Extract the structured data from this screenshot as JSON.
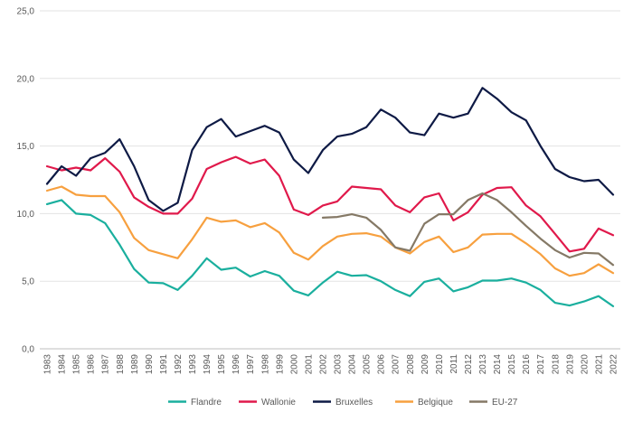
{
  "chart_data": {
    "type": "line",
    "x": [
      "1983",
      "1984",
      "1985",
      "1986",
      "1987",
      "1988",
      "1989",
      "1990",
      "1991",
      "1992",
      "1993",
      "1994",
      "1995",
      "1996",
      "1997",
      "1998",
      "1999",
      "2000",
      "2001",
      "2002",
      "2003",
      "2004",
      "2005",
      "2006",
      "2007",
      "2008",
      "2009",
      "2010",
      "2011",
      "2012",
      "2013",
      "2014",
      "2015",
      "2016",
      "2017",
      "2018",
      "2019",
      "2020",
      "2021",
      "2022"
    ],
    "ylim": [
      0,
      25
    ],
    "yticks": [
      "0,0",
      "5,0",
      "10,0",
      "15,0",
      "20,0",
      "25,0"
    ],
    "grid": true,
    "legend_position": "bottom",
    "series": [
      {
        "name": "Flandre",
        "color": "#1aaf9e",
        "values": [
          10.7,
          11.0,
          10.0,
          9.9,
          9.3,
          7.7,
          5.9,
          4.9,
          4.85,
          4.35,
          5.4,
          6.7,
          5.85,
          6.0,
          5.35,
          5.75,
          5.4,
          4.3,
          3.95,
          4.9,
          5.7,
          5.4,
          5.45,
          5.0,
          4.35,
          3.9,
          4.95,
          5.2,
          4.25,
          4.55,
          5.05,
          5.05,
          5.2,
          4.9,
          4.35,
          3.4,
          3.2,
          3.5,
          3.9,
          3.15
        ]
      },
      {
        "name": "Wallonie",
        "color": "#e0194b",
        "values": [
          13.5,
          13.2,
          13.4,
          13.2,
          14.1,
          13.1,
          11.2,
          10.5,
          10.0,
          10.0,
          11.1,
          13.3,
          13.8,
          14.2,
          13.7,
          14.0,
          12.8,
          10.3,
          9.9,
          10.6,
          10.9,
          12.0,
          11.9,
          11.8,
          10.6,
          10.1,
          11.2,
          11.5,
          9.5,
          10.1,
          11.4,
          11.9,
          11.95,
          10.6,
          9.8,
          8.5,
          7.2,
          7.4,
          8.9,
          8.4
        ]
      },
      {
        "name": "Bruxelles",
        "color": "#0e1a45",
        "values": [
          12.2,
          13.5,
          12.8,
          14.1,
          14.5,
          15.5,
          13.5,
          11.0,
          10.2,
          10.8,
          14.7,
          16.4,
          17.0,
          15.7,
          16.1,
          16.5,
          16.0,
          14.0,
          13.0,
          14.7,
          15.7,
          15.9,
          16.4,
          17.7,
          17.1,
          16.0,
          15.8,
          17.4,
          17.1,
          17.4,
          19.3,
          18.5,
          17.5,
          16.9,
          15.0,
          13.3,
          12.7,
          12.4,
          12.5,
          11.4
        ]
      },
      {
        "name": "Belgique",
        "color": "#f7a03f",
        "values": [
          11.7,
          12.0,
          11.4,
          11.3,
          11.3,
          10.1,
          8.2,
          7.3,
          7.0,
          6.7,
          8.1,
          9.7,
          9.4,
          9.5,
          9.0,
          9.3,
          8.6,
          7.1,
          6.6,
          7.6,
          8.3,
          8.5,
          8.55,
          8.3,
          7.5,
          7.05,
          7.9,
          8.3,
          7.15,
          7.5,
          8.45,
          8.5,
          8.5,
          7.8,
          7.0,
          5.95,
          5.4,
          5.6,
          6.25,
          5.6
        ]
      },
      {
        "name": "EU-27",
        "color": "#857966",
        "values": [
          null,
          null,
          null,
          null,
          null,
          null,
          null,
          null,
          null,
          null,
          null,
          null,
          null,
          null,
          null,
          null,
          null,
          null,
          null,
          9.7,
          9.75,
          9.95,
          9.7,
          8.8,
          7.5,
          7.25,
          9.25,
          9.95,
          9.95,
          11.0,
          11.5,
          11.0,
          10.1,
          9.1,
          8.15,
          7.3,
          6.75,
          7.1,
          7.05,
          6.2
        ]
      }
    ]
  }
}
